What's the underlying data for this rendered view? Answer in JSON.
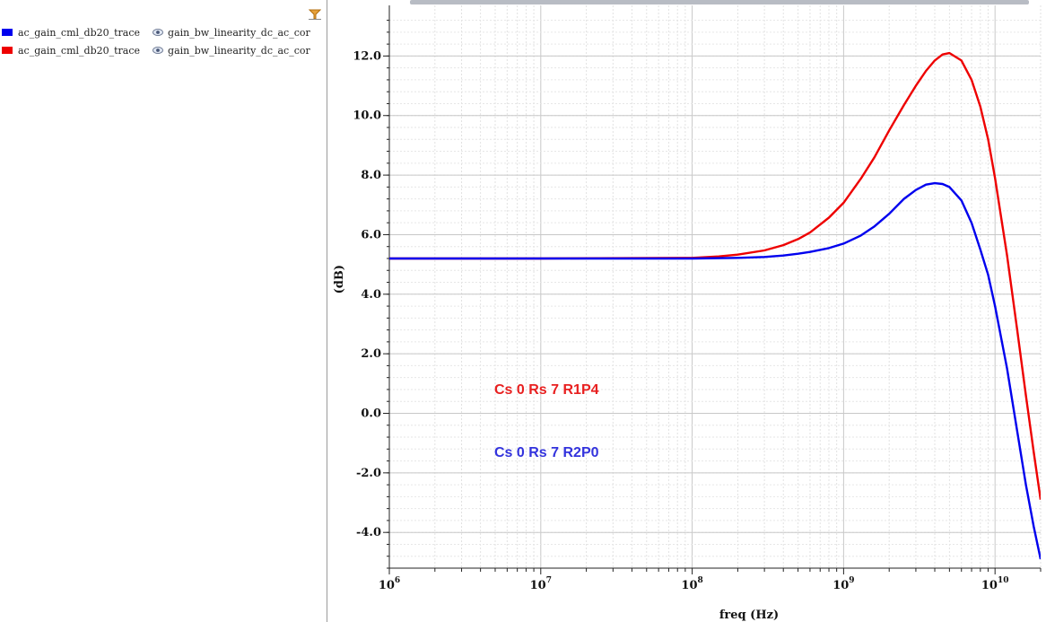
{
  "legend": {
    "items": [
      {
        "trace": "ac_gain_cml_db20_trace",
        "source": "gain_bw_linearity_dc_ac_cor",
        "color": "#0000ee"
      },
      {
        "trace": "ac_gain_cml_db20_trace",
        "source": "gain_bw_linearity_dc_ac_cor",
        "color": "#ee0000"
      }
    ]
  },
  "chart_data": {
    "type": "line",
    "xlabel": "freq (Hz)",
    "ylabel": "(dB)",
    "xscale": "log",
    "xlim": [
      1000000,
      20000000000
    ],
    "ylim": [
      -5.2,
      13.7
    ],
    "grid": true,
    "yticks": [
      12,
      10,
      8,
      6,
      4,
      2,
      0,
      -2,
      -4
    ],
    "ytick_labels": [
      "12.0",
      "10.0",
      "8.0",
      "6.0",
      "4.0",
      "2.0",
      "0.0",
      "-2.0",
      "-4.0"
    ],
    "xticks": [
      {
        "value": 1000000,
        "base": "10",
        "exp": "6"
      },
      {
        "value": 10000000,
        "base": "10",
        "exp": "7"
      },
      {
        "value": 100000000,
        "base": "10",
        "exp": "8"
      },
      {
        "value": 1000000000,
        "base": "10",
        "exp": "9"
      },
      {
        "value": 10000000000,
        "base": "10",
        "exp": "10"
      }
    ],
    "series": [
      {
        "color": "#ee0000",
        "x": [
          1000000,
          10000000,
          100000000,
          150000000,
          200000000,
          300000000,
          400000000,
          500000000,
          600000000,
          800000000,
          1000000000,
          1300000000,
          1600000000,
          2000000000,
          2500000000,
          3000000000,
          3500000000,
          4000000000,
          4500000000,
          5000000000,
          6000000000,
          7000000000,
          8000000000,
          9000000000,
          10000000000,
          12000000000,
          14000000000,
          16000000000,
          18000000000,
          20000000000
        ],
        "y": [
          5.2,
          5.2,
          5.22,
          5.27,
          5.33,
          5.47,
          5.65,
          5.85,
          6.07,
          6.57,
          7.07,
          7.88,
          8.6,
          9.5,
          10.35,
          11.0,
          11.5,
          11.85,
          12.05,
          12.1,
          11.85,
          11.2,
          10.3,
          9.2,
          7.9,
          5.3,
          2.8,
          0.6,
          -1.3,
          -2.9
        ]
      },
      {
        "color": "#0000ee",
        "x": [
          1000000,
          10000000,
          100000000,
          200000000,
          300000000,
          400000000,
          500000000,
          600000000,
          800000000,
          1000000000,
          1300000000,
          1600000000,
          2000000000,
          2500000000,
          3000000000,
          3500000000,
          4000000000,
          4500000000,
          5000000000,
          6000000000,
          7000000000,
          8000000000,
          9000000000,
          10000000000,
          12000000000,
          14000000000,
          16000000000,
          18000000000,
          20000000000
        ],
        "y": [
          5.2,
          5.2,
          5.2,
          5.22,
          5.25,
          5.3,
          5.36,
          5.42,
          5.55,
          5.7,
          5.97,
          6.28,
          6.7,
          7.2,
          7.5,
          7.68,
          7.73,
          7.7,
          7.6,
          7.15,
          6.4,
          5.5,
          4.65,
          3.6,
          1.5,
          -0.6,
          -2.4,
          -3.8,
          -4.9
        ]
      }
    ],
    "annotations": [
      {
        "text": "Cs 0 Rs 7 R1P4",
        "color": "#e82020"
      },
      {
        "text": "Cs 0 Rs 7 R2P0",
        "color": "#3333dd"
      }
    ]
  }
}
